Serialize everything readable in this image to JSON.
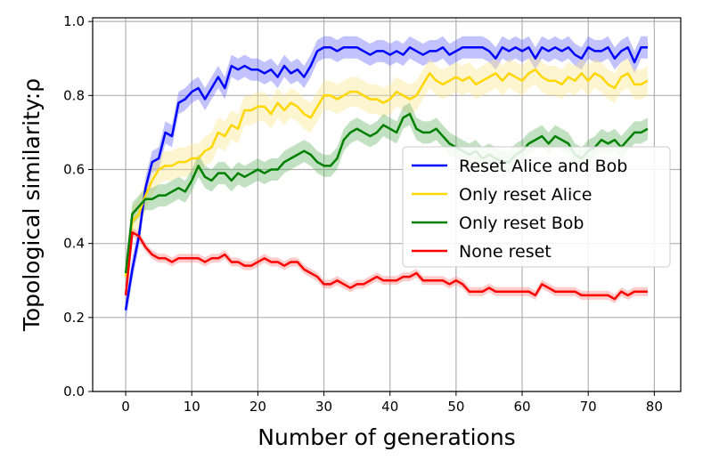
{
  "chart_data": {
    "type": "line",
    "xlabel": "Number of generations",
    "ylabel": "Topological similarity:ρ",
    "xlim": [
      -5,
      84
    ],
    "ylim": [
      0.0,
      1.01
    ],
    "xticks": [
      "0",
      "10",
      "20",
      "30",
      "40",
      "50",
      "60",
      "70",
      "80"
    ],
    "yticks": [
      "0.0",
      "0.2",
      "0.4",
      "0.6",
      "0.8",
      "1.0"
    ],
    "grid": true,
    "legend_position": "right",
    "series": [
      {
        "name": "Reset Alice and Bob",
        "color": "#0000ff",
        "band_color": "#6666ff",
        "x": [
          0,
          1,
          2,
          3,
          4,
          5,
          6,
          7,
          8,
          9,
          10,
          11,
          12,
          13,
          14,
          15,
          16,
          17,
          18,
          19,
          20,
          21,
          22,
          23,
          24,
          25,
          26,
          27,
          28,
          29,
          30,
          31,
          32,
          33,
          34,
          35,
          36,
          37,
          38,
          39,
          40,
          41,
          42,
          43,
          44,
          45,
          46,
          47,
          48,
          49,
          50,
          51,
          52,
          53,
          54,
          55,
          56,
          57,
          58,
          59,
          60,
          61,
          62,
          63,
          64,
          65,
          66,
          67,
          68,
          69,
          70,
          71,
          72,
          73,
          74,
          75,
          76,
          77,
          78,
          79
        ],
        "y": [
          0.22,
          0.33,
          0.42,
          0.55,
          0.62,
          0.63,
          0.7,
          0.69,
          0.78,
          0.79,
          0.81,
          0.82,
          0.79,
          0.82,
          0.85,
          0.82,
          0.88,
          0.87,
          0.88,
          0.87,
          0.87,
          0.86,
          0.87,
          0.85,
          0.88,
          0.86,
          0.87,
          0.85,
          0.88,
          0.92,
          0.93,
          0.93,
          0.92,
          0.93,
          0.93,
          0.93,
          0.92,
          0.91,
          0.92,
          0.92,
          0.91,
          0.92,
          0.91,
          0.93,
          0.92,
          0.91,
          0.92,
          0.92,
          0.93,
          0.91,
          0.92,
          0.93,
          0.93,
          0.93,
          0.93,
          0.92,
          0.9,
          0.93,
          0.92,
          0.93,
          0.92,
          0.93,
          0.9,
          0.93,
          0.92,
          0.93,
          0.92,
          0.93,
          0.91,
          0.9,
          0.93,
          0.92,
          0.92,
          0.93,
          0.9,
          0.92,
          0.93,
          0.89,
          0.93,
          0.93
        ],
        "spread": 0.03
      },
      {
        "name": "Only reset Alice",
        "color": "#ffd700",
        "band_color": "#fbe38a",
        "x": [
          0,
          1,
          2,
          3,
          4,
          5,
          6,
          7,
          8,
          9,
          10,
          11,
          12,
          13,
          14,
          15,
          16,
          17,
          18,
          19,
          20,
          21,
          22,
          23,
          24,
          25,
          26,
          27,
          28,
          29,
          30,
          31,
          32,
          33,
          34,
          35,
          36,
          37,
          38,
          39,
          40,
          41,
          42,
          43,
          44,
          45,
          46,
          47,
          48,
          49,
          50,
          51,
          52,
          53,
          54,
          55,
          56,
          57,
          58,
          59,
          60,
          61,
          62,
          63,
          64,
          65,
          66,
          67,
          68,
          69,
          70,
          71,
          72,
          73,
          74,
          75,
          76,
          77,
          78,
          79
        ],
        "y": [
          0.31,
          0.46,
          0.48,
          0.53,
          0.57,
          0.6,
          0.61,
          0.61,
          0.62,
          0.62,
          0.63,
          0.63,
          0.65,
          0.66,
          0.7,
          0.69,
          0.72,
          0.71,
          0.76,
          0.76,
          0.77,
          0.77,
          0.75,
          0.78,
          0.76,
          0.78,
          0.77,
          0.75,
          0.74,
          0.77,
          0.8,
          0.8,
          0.79,
          0.8,
          0.81,
          0.81,
          0.8,
          0.79,
          0.79,
          0.78,
          0.79,
          0.81,
          0.8,
          0.79,
          0.8,
          0.83,
          0.86,
          0.84,
          0.83,
          0.84,
          0.85,
          0.84,
          0.85,
          0.83,
          0.84,
          0.85,
          0.86,
          0.84,
          0.86,
          0.85,
          0.84,
          0.86,
          0.87,
          0.85,
          0.84,
          0.84,
          0.83,
          0.85,
          0.84,
          0.86,
          0.84,
          0.86,
          0.85,
          0.83,
          0.82,
          0.85,
          0.86,
          0.83,
          0.83,
          0.84
        ],
        "spread": 0.04
      },
      {
        "name": "Only reset Bob",
        "color": "#008000",
        "band_color": "#66b266",
        "x": [
          0,
          1,
          2,
          3,
          4,
          5,
          6,
          7,
          8,
          9,
          10,
          11,
          12,
          13,
          14,
          15,
          16,
          17,
          18,
          19,
          20,
          21,
          22,
          23,
          24,
          25,
          26,
          27,
          28,
          29,
          30,
          31,
          32,
          33,
          34,
          35,
          36,
          37,
          38,
          39,
          40,
          41,
          42,
          43,
          44,
          45,
          46,
          47,
          48,
          49,
          50,
          51,
          52,
          53,
          54,
          55,
          56,
          57,
          58,
          59,
          60,
          61,
          62,
          63,
          64,
          65,
          66,
          67,
          68,
          69,
          70,
          71,
          72,
          73,
          74,
          75,
          76,
          77,
          78,
          79
        ],
        "y": [
          0.32,
          0.48,
          0.5,
          0.52,
          0.52,
          0.53,
          0.53,
          0.54,
          0.55,
          0.54,
          0.57,
          0.61,
          0.58,
          0.57,
          0.59,
          0.59,
          0.57,
          0.59,
          0.58,
          0.59,
          0.6,
          0.59,
          0.6,
          0.6,
          0.62,
          0.63,
          0.64,
          0.65,
          0.64,
          0.62,
          0.61,
          0.61,
          0.63,
          0.68,
          0.7,
          0.71,
          0.7,
          0.69,
          0.7,
          0.72,
          0.71,
          0.7,
          0.74,
          0.75,
          0.71,
          0.7,
          0.7,
          0.71,
          0.69,
          0.67,
          0.66,
          0.65,
          0.64,
          0.65,
          0.63,
          0.64,
          0.63,
          0.62,
          0.62,
          0.64,
          0.65,
          0.67,
          0.68,
          0.69,
          0.67,
          0.69,
          0.68,
          0.67,
          0.64,
          0.63,
          0.65,
          0.66,
          0.68,
          0.67,
          0.68,
          0.66,
          0.68,
          0.7,
          0.7,
          0.71
        ],
        "spread": 0.03
      },
      {
        "name": "None reset",
        "color": "#ff0000",
        "band_color": "#ff7f7f",
        "x": [
          0,
          1,
          2,
          3,
          4,
          5,
          6,
          7,
          8,
          9,
          10,
          11,
          12,
          13,
          14,
          15,
          16,
          17,
          18,
          19,
          20,
          21,
          22,
          23,
          24,
          25,
          26,
          27,
          28,
          29,
          30,
          31,
          32,
          33,
          34,
          35,
          36,
          37,
          38,
          39,
          40,
          41,
          42,
          43,
          44,
          45,
          46,
          47,
          48,
          49,
          50,
          51,
          52,
          53,
          54,
          55,
          56,
          57,
          58,
          59,
          60,
          61,
          62,
          63,
          64,
          65,
          66,
          67,
          68,
          69,
          70,
          71,
          72,
          73,
          74,
          75,
          76,
          77,
          78,
          79
        ],
        "y": [
          0.26,
          0.43,
          0.42,
          0.39,
          0.37,
          0.36,
          0.36,
          0.35,
          0.36,
          0.36,
          0.36,
          0.36,
          0.35,
          0.36,
          0.36,
          0.37,
          0.35,
          0.35,
          0.34,
          0.34,
          0.35,
          0.36,
          0.35,
          0.35,
          0.34,
          0.35,
          0.35,
          0.33,
          0.32,
          0.31,
          0.29,
          0.29,
          0.3,
          0.29,
          0.28,
          0.29,
          0.29,
          0.3,
          0.31,
          0.3,
          0.3,
          0.3,
          0.31,
          0.31,
          0.32,
          0.3,
          0.3,
          0.3,
          0.3,
          0.29,
          0.3,
          0.29,
          0.27,
          0.27,
          0.27,
          0.28,
          0.27,
          0.27,
          0.27,
          0.27,
          0.27,
          0.27,
          0.26,
          0.29,
          0.28,
          0.27,
          0.27,
          0.27,
          0.27,
          0.26,
          0.26,
          0.26,
          0.26,
          0.26,
          0.25,
          0.27,
          0.26,
          0.27,
          0.27,
          0.27
        ],
        "spread": 0.012
      }
    ]
  }
}
